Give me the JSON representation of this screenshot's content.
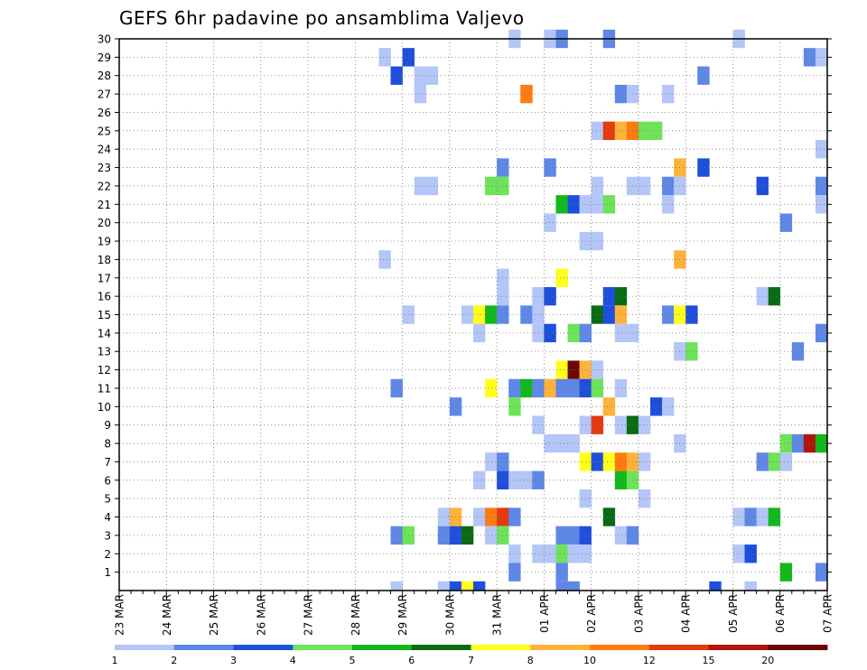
{
  "chart_data": {
    "type": "heatmap",
    "title": "GEFS 6hr padavine po ansamblima Valjevo",
    "x_ticks": [
      "23 MAR",
      "24 MAR",
      "25 MAR",
      "26 MAR",
      "27 MAR",
      "28 MAR",
      "29 MAR",
      "30 MAR",
      "31 MAR",
      "01 APR",
      "02 APR",
      "03 APR",
      "04 APR",
      "05 APR",
      "06 APR",
      "07 APR"
    ],
    "x_steps_per_day": 4,
    "x_range_steps": [
      0,
      60
    ],
    "y_ticks": [
      1,
      2,
      3,
      4,
      5,
      6,
      7,
      8,
      9,
      10,
      11,
      12,
      13,
      14,
      15,
      16,
      17,
      18,
      19,
      20,
      21,
      22,
      23,
      24,
      25,
      26,
      27,
      28,
      29,
      30
    ],
    "y_range": [
      0,
      30
    ],
    "grid": true,
    "colorbar": {
      "labels": [
        "1",
        "2",
        "3",
        "4",
        "5",
        "6",
        "7",
        "8",
        "10",
        "12",
        "15",
        "20"
      ],
      "colors": [
        "#b3c6f7",
        "#5e87e6",
        "#1e4fdc",
        "#6ee35a",
        "#12b81c",
        "#0a6b14",
        "#ffff1a",
        "#ffb23a",
        "#ff7a10",
        "#e43a10",
        "#b4140e",
        "#6b0806"
      ]
    },
    "cells": [
      {
        "step": 33,
        "member": 30,
        "level": 1
      },
      {
        "step": 36,
        "member": 30,
        "level": 1
      },
      {
        "step": 37,
        "member": 30,
        "level": 2
      },
      {
        "step": 41,
        "member": 30,
        "level": 2
      },
      {
        "step": 52,
        "member": 30,
        "level": 1
      },
      {
        "step": 22,
        "member": 29,
        "level": 1
      },
      {
        "step": 24,
        "member": 29,
        "level": 3
      },
      {
        "step": 58,
        "member": 29,
        "level": 2
      },
      {
        "step": 59,
        "member": 29,
        "level": 1
      },
      {
        "step": 23,
        "member": 28,
        "level": 3
      },
      {
        "step": 25,
        "member": 28,
        "level": 1
      },
      {
        "step": 26,
        "member": 28,
        "level": 1
      },
      {
        "step": 49,
        "member": 28,
        "level": 2
      },
      {
        "step": 25,
        "member": 27,
        "level": 1
      },
      {
        "step": 34,
        "member": 27,
        "level": 9
      },
      {
        "step": 42,
        "member": 27,
        "level": 2
      },
      {
        "step": 43,
        "member": 27,
        "level": 1
      },
      {
        "step": 46,
        "member": 27,
        "level": 1
      },
      {
        "step": 40,
        "member": 25,
        "level": 1
      },
      {
        "step": 41,
        "member": 25,
        "level": 10
      },
      {
        "step": 42,
        "member": 25,
        "level": 8
      },
      {
        "step": 43,
        "member": 25,
        "level": 9
      },
      {
        "step": 44,
        "member": 25,
        "level": 4
      },
      {
        "step": 45,
        "member": 25,
        "level": 4
      },
      {
        "step": 59,
        "member": 24,
        "level": 1
      },
      {
        "step": 32,
        "member": 23,
        "level": 2
      },
      {
        "step": 36,
        "member": 23,
        "level": 2
      },
      {
        "step": 47,
        "member": 23,
        "level": 8
      },
      {
        "step": 49,
        "member": 23,
        "level": 3
      },
      {
        "step": 25,
        "member": 22,
        "level": 1
      },
      {
        "step": 26,
        "member": 22,
        "level": 1
      },
      {
        "step": 31,
        "member": 22,
        "level": 4
      },
      {
        "step": 32,
        "member": 22,
        "level": 4
      },
      {
        "step": 40,
        "member": 22,
        "level": 1
      },
      {
        "step": 43,
        "member": 22,
        "level": 1
      },
      {
        "step": 44,
        "member": 22,
        "level": 1
      },
      {
        "step": 46,
        "member": 22,
        "level": 2
      },
      {
        "step": 47,
        "member": 22,
        "level": 1
      },
      {
        "step": 54,
        "member": 22,
        "level": 3
      },
      {
        "step": 59,
        "member": 22,
        "level": 2
      },
      {
        "step": 37,
        "member": 21,
        "level": 5
      },
      {
        "step": 38,
        "member": 21,
        "level": 3
      },
      {
        "step": 39,
        "member": 21,
        "level": 1
      },
      {
        "step": 40,
        "member": 21,
        "level": 1
      },
      {
        "step": 41,
        "member": 21,
        "level": 4
      },
      {
        "step": 46,
        "member": 21,
        "level": 1
      },
      {
        "step": 59,
        "member": 21,
        "level": 1
      },
      {
        "step": 36,
        "member": 20,
        "level": 1
      },
      {
        "step": 56,
        "member": 20,
        "level": 2
      },
      {
        "step": 39,
        "member": 19,
        "level": 1
      },
      {
        "step": 40,
        "member": 19,
        "level": 1
      },
      {
        "step": 22,
        "member": 18,
        "level": 1
      },
      {
        "step": 47,
        "member": 18,
        "level": 8
      },
      {
        "step": 32,
        "member": 17,
        "level": 1
      },
      {
        "step": 37,
        "member": 17,
        "level": 7
      },
      {
        "step": 32,
        "member": 16,
        "level": 1
      },
      {
        "step": 35,
        "member": 16,
        "level": 1
      },
      {
        "step": 36,
        "member": 16,
        "level": 3
      },
      {
        "step": 41,
        "member": 16,
        "level": 3
      },
      {
        "step": 42,
        "member": 16,
        "level": 6
      },
      {
        "step": 54,
        "member": 16,
        "level": 1
      },
      {
        "step": 55,
        "member": 16,
        "level": 6
      },
      {
        "step": 24,
        "member": 15,
        "level": 1
      },
      {
        "step": 29,
        "member": 15,
        "level": 1
      },
      {
        "step": 30,
        "member": 15,
        "level": 7
      },
      {
        "step": 31,
        "member": 15,
        "level": 5
      },
      {
        "step": 32,
        "member": 15,
        "level": 2
      },
      {
        "step": 34,
        "member": 15,
        "level": 2
      },
      {
        "step": 35,
        "member": 15,
        "level": 1
      },
      {
        "step": 40,
        "member": 15,
        "level": 6
      },
      {
        "step": 41,
        "member": 15,
        "level": 3
      },
      {
        "step": 42,
        "member": 15,
        "level": 8
      },
      {
        "step": 46,
        "member": 15,
        "level": 2
      },
      {
        "step": 47,
        "member": 15,
        "level": 7
      },
      {
        "step": 48,
        "member": 15,
        "level": 3
      },
      {
        "step": 30,
        "member": 14,
        "level": 1
      },
      {
        "step": 35,
        "member": 14,
        "level": 1
      },
      {
        "step": 36,
        "member": 14,
        "level": 3
      },
      {
        "step": 38,
        "member": 14,
        "level": 4
      },
      {
        "step": 39,
        "member": 14,
        "level": 2
      },
      {
        "step": 42,
        "member": 14,
        "level": 1
      },
      {
        "step": 43,
        "member": 14,
        "level": 1
      },
      {
        "step": 59,
        "member": 14,
        "level": 2
      },
      {
        "step": 47,
        "member": 13,
        "level": 1
      },
      {
        "step": 48,
        "member": 13,
        "level": 4
      },
      {
        "step": 57,
        "member": 13,
        "level": 2
      },
      {
        "step": 37,
        "member": 12,
        "level": 7
      },
      {
        "step": 38,
        "member": 12,
        "level": 12
      },
      {
        "step": 39,
        "member": 12,
        "level": 8
      },
      {
        "step": 40,
        "member": 12,
        "level": 1
      },
      {
        "step": 23,
        "member": 11,
        "level": 2
      },
      {
        "step": 31,
        "member": 11,
        "level": 7
      },
      {
        "step": 33,
        "member": 11,
        "level": 2
      },
      {
        "step": 34,
        "member": 11,
        "level": 5
      },
      {
        "step": 35,
        "member": 11,
        "level": 2
      },
      {
        "step": 36,
        "member": 11,
        "level": 8
      },
      {
        "step": 37,
        "member": 11,
        "level": 2
      },
      {
        "step": 38,
        "member": 11,
        "level": 2
      },
      {
        "step": 39,
        "member": 11,
        "level": 3
      },
      {
        "step": 40,
        "member": 11,
        "level": 4
      },
      {
        "step": 42,
        "member": 11,
        "level": 1
      },
      {
        "step": 28,
        "member": 10,
        "level": 2
      },
      {
        "step": 33,
        "member": 10,
        "level": 4
      },
      {
        "step": 41,
        "member": 10,
        "level": 8
      },
      {
        "step": 45,
        "member": 10,
        "level": 3
      },
      {
        "step": 46,
        "member": 10,
        "level": 1
      },
      {
        "step": 35,
        "member": 9,
        "level": 1
      },
      {
        "step": 39,
        "member": 9,
        "level": 1
      },
      {
        "step": 40,
        "member": 9,
        "level": 10
      },
      {
        "step": 42,
        "member": 9,
        "level": 1
      },
      {
        "step": 43,
        "member": 9,
        "level": 6
      },
      {
        "step": 44,
        "member": 9,
        "level": 1
      },
      {
        "step": 36,
        "member": 8,
        "level": 1
      },
      {
        "step": 37,
        "member": 8,
        "level": 1
      },
      {
        "step": 38,
        "member": 8,
        "level": 1
      },
      {
        "step": 47,
        "member": 8,
        "level": 1
      },
      {
        "step": 56,
        "member": 8,
        "level": 4
      },
      {
        "step": 57,
        "member": 8,
        "level": 2
      },
      {
        "step": 58,
        "member": 8,
        "level": 11
      },
      {
        "step": 59,
        "member": 8,
        "level": 5
      },
      {
        "step": 31,
        "member": 7,
        "level": 1
      },
      {
        "step": 32,
        "member": 7,
        "level": 2
      },
      {
        "step": 39,
        "member": 7,
        "level": 7
      },
      {
        "step": 40,
        "member": 7,
        "level": 3
      },
      {
        "step": 41,
        "member": 7,
        "level": 7
      },
      {
        "step": 42,
        "member": 7,
        "level": 9
      },
      {
        "step": 43,
        "member": 7,
        "level": 8
      },
      {
        "step": 44,
        "member": 7,
        "level": 1
      },
      {
        "step": 54,
        "member": 7,
        "level": 2
      },
      {
        "step": 55,
        "member": 7,
        "level": 4
      },
      {
        "step": 56,
        "member": 7,
        "level": 1
      },
      {
        "step": 30,
        "member": 6,
        "level": 1
      },
      {
        "step": 32,
        "member": 6,
        "level": 3
      },
      {
        "step": 33,
        "member": 6,
        "level": 1
      },
      {
        "step": 34,
        "member": 6,
        "level": 1
      },
      {
        "step": 35,
        "member": 6,
        "level": 2
      },
      {
        "step": 42,
        "member": 6,
        "level": 5
      },
      {
        "step": 43,
        "member": 6,
        "level": 4
      },
      {
        "step": 39,
        "member": 5,
        "level": 1
      },
      {
        "step": 44,
        "member": 5,
        "level": 1
      },
      {
        "step": 27,
        "member": 4,
        "level": 1
      },
      {
        "step": 28,
        "member": 4,
        "level": 8
      },
      {
        "step": 30,
        "member": 4,
        "level": 1
      },
      {
        "step": 31,
        "member": 4,
        "level": 9
      },
      {
        "step": 32,
        "member": 4,
        "level": 10
      },
      {
        "step": 33,
        "member": 4,
        "level": 2
      },
      {
        "step": 41,
        "member": 4,
        "level": 6
      },
      {
        "step": 52,
        "member": 4,
        "level": 1
      },
      {
        "step": 53,
        "member": 4,
        "level": 2
      },
      {
        "step": 54,
        "member": 4,
        "level": 1
      },
      {
        "step": 55,
        "member": 4,
        "level": 5
      },
      {
        "step": 23,
        "member": 3,
        "level": 2
      },
      {
        "step": 24,
        "member": 3,
        "level": 4
      },
      {
        "step": 27,
        "member": 3,
        "level": 2
      },
      {
        "step": 28,
        "member": 3,
        "level": 3
      },
      {
        "step": 29,
        "member": 3,
        "level": 6
      },
      {
        "step": 31,
        "member": 3,
        "level": 1
      },
      {
        "step": 32,
        "member": 3,
        "level": 4
      },
      {
        "step": 37,
        "member": 3,
        "level": 2
      },
      {
        "step": 38,
        "member": 3,
        "level": 2
      },
      {
        "step": 39,
        "member": 3,
        "level": 3
      },
      {
        "step": 42,
        "member": 3,
        "level": 1
      },
      {
        "step": 43,
        "member": 3,
        "level": 2
      },
      {
        "step": 33,
        "member": 2,
        "level": 1
      },
      {
        "step": 35,
        "member": 2,
        "level": 1
      },
      {
        "step": 36,
        "member": 2,
        "level": 1
      },
      {
        "step": 37,
        "member": 2,
        "level": 4
      },
      {
        "step": 38,
        "member": 2,
        "level": 1
      },
      {
        "step": 39,
        "member": 2,
        "level": 1
      },
      {
        "step": 52,
        "member": 2,
        "level": 1
      },
      {
        "step": 53,
        "member": 2,
        "level": 3
      },
      {
        "step": 33,
        "member": 1,
        "level": 2
      },
      {
        "step": 37,
        "member": 1,
        "level": 2
      },
      {
        "step": 56,
        "member": 1,
        "level": 5
      },
      {
        "step": 59,
        "member": 1,
        "level": 2
      },
      {
        "step": 23,
        "member": 0,
        "level": 1
      },
      {
        "step": 27,
        "member": 0,
        "level": 1
      },
      {
        "step": 28,
        "member": 0,
        "level": 3
      },
      {
        "step": 29,
        "member": 0,
        "level": 7
      },
      {
        "step": 30,
        "member": 0,
        "level": 3
      },
      {
        "step": 37,
        "member": 0,
        "level": 2
      },
      {
        "step": 38,
        "member": 0,
        "level": 2
      },
      {
        "step": 50,
        "member": 0,
        "level": 3
      },
      {
        "step": 53,
        "member": 0,
        "level": 1
      }
    ]
  }
}
